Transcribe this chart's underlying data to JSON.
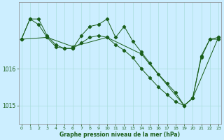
{
  "xlabel": "Graphe pression niveau de la mer (hPa)",
  "background_color": "#cceeff",
  "grid_color": "#aadddd",
  "line_color": "#1a5e1a",
  "ylim": [
    1014.5,
    1017.8
  ],
  "xlim": [
    -0.3,
    23.3
  ],
  "yticks": [
    1015,
    1016
  ],
  "xticks": [
    0,
    1,
    2,
    3,
    4,
    5,
    6,
    7,
    8,
    9,
    10,
    11,
    12,
    13,
    14,
    15,
    16,
    17,
    18,
    19,
    20,
    21,
    22,
    23
  ],
  "s1_x": [
    0,
    1,
    2,
    3,
    4,
    5,
    6,
    7,
    8,
    9,
    10,
    11,
    12,
    13,
    14,
    15,
    16,
    17,
    18,
    19,
    20,
    21,
    22,
    23
  ],
  "s1_y": [
    1016.8,
    1017.35,
    1017.35,
    1016.9,
    1016.65,
    1016.55,
    1016.55,
    1016.9,
    1017.15,
    1017.2,
    1017.35,
    1016.85,
    1017.15,
    1016.75,
    1016.45,
    1016.15,
    1015.85,
    1015.6,
    1015.35,
    1015.0,
    1015.2,
    1016.35,
    1016.8,
    1016.85
  ],
  "s2_x": [
    0,
    1,
    2,
    3,
    4,
    5,
    6,
    7,
    8,
    9,
    10,
    11,
    12,
    13,
    14,
    15,
    16,
    17,
    18,
    19,
    20,
    21,
    22,
    23
  ],
  "s2_y": [
    1016.8,
    1017.35,
    1017.2,
    1016.85,
    1016.6,
    1016.55,
    1016.55,
    1016.7,
    1016.85,
    1016.9,
    1016.85,
    1016.65,
    1016.5,
    1016.3,
    1016.0,
    1015.75,
    1015.5,
    1015.3,
    1015.1,
    1015.0,
    1015.2,
    1016.3,
    1016.8,
    1016.8
  ],
  "s3_x": [
    0,
    3,
    6,
    10,
    14,
    19,
    20,
    23
  ],
  "s3_y": [
    1016.8,
    1016.85,
    1016.6,
    1016.85,
    1016.4,
    1015.0,
    1015.2,
    1016.85
  ]
}
